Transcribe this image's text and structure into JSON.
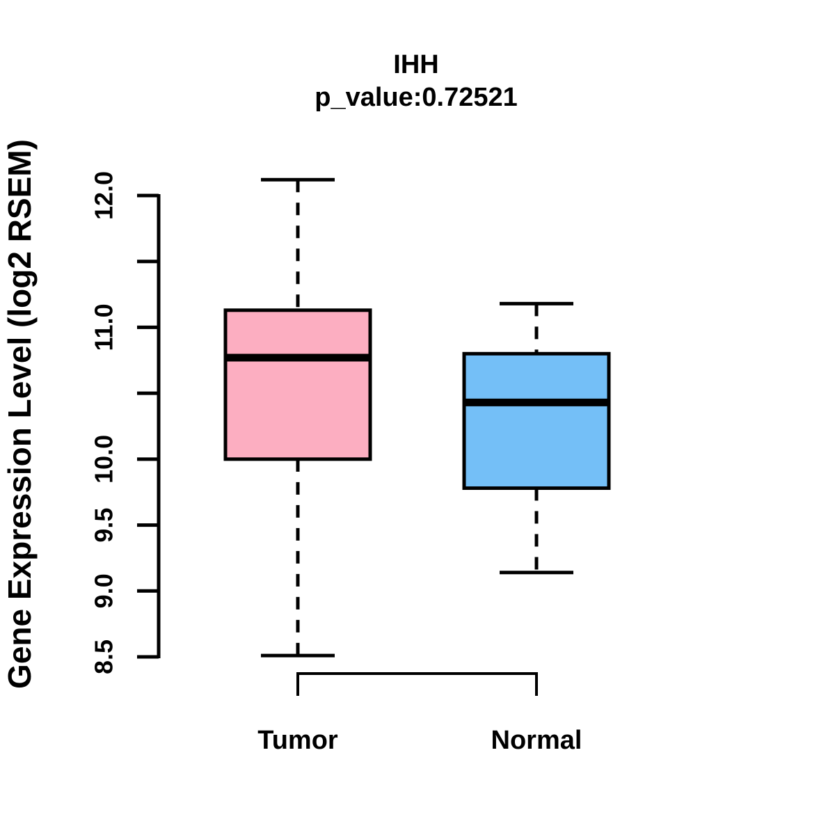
{
  "chart_data": {
    "type": "boxplot",
    "title": "IHH",
    "subtitle": "p_value:0.72521",
    "ylabel": "Gene Expression Level (log2 RSEM)",
    "categories": [
      "Tumor",
      "Normal"
    ],
    "series": [
      {
        "name": "Tumor",
        "color": "#FCAEC1",
        "whisker_low": 8.51,
        "q1": 10.0,
        "median": 10.77,
        "q3": 11.13,
        "whisker_high": 12.12,
        "outliers": []
      },
      {
        "name": "Normal",
        "color": "#74BFF7",
        "whisker_low": 9.14,
        "q1": 9.78,
        "median": 10.43,
        "q3": 10.8,
        "whisker_high": 11.18,
        "outliers": []
      }
    ],
    "ylim": [
      8.5,
      12.0
    ],
    "yticks": [
      {
        "value": 8.5,
        "label": "8.5"
      },
      {
        "value": 9.0,
        "label": "9.0"
      },
      {
        "value": 9.5,
        "label": "9.5"
      },
      {
        "value": 10.0,
        "label": "10.0"
      },
      {
        "value": 10.5,
        "label": ""
      },
      {
        "value": 11.0,
        "label": "11.0"
      },
      {
        "value": 11.5,
        "label": ""
      },
      {
        "value": 12.0,
        "label": "12.0"
      }
    ],
    "grid": false,
    "legend": "none",
    "line_color": "#000000",
    "background_color": "#FFFFFF"
  }
}
